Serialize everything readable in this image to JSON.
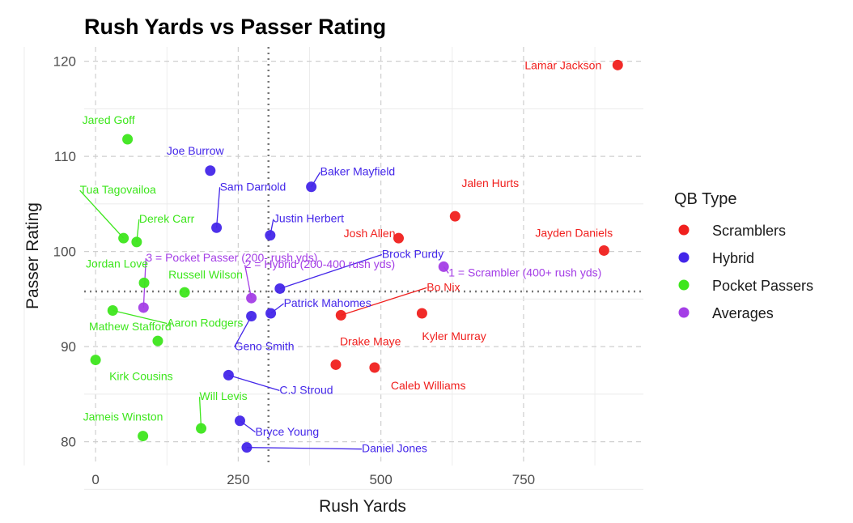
{
  "chart_data": {
    "type": "scatter",
    "title": "Rush Yards vs Passer Rating",
    "xlabel": "Rush Yards",
    "ylabel": "Passer Rating",
    "xlim": [
      -20,
      960
    ],
    "ylim": [
      77.5,
      121.5
    ],
    "x_ticks": [
      0,
      250,
      500,
      750
    ],
    "y_ticks": [
      80,
      90,
      100,
      110,
      120
    ],
    "grid": true,
    "reference_lines": {
      "vertical_x": 303,
      "horizontal_y": 95.8
    },
    "legend": {
      "title": "QB Type",
      "position": "right"
    },
    "series": [
      {
        "name": "Scramblers",
        "color": "#f0201e",
        "points": [
          {
            "label": "Lamar Jackson",
            "x": 915,
            "y": 119.6
          },
          {
            "label": "Jalen Hurts",
            "x": 630,
            "y": 103.7
          },
          {
            "label": "Josh Allen",
            "x": 531,
            "y": 101.4
          },
          {
            "label": "Jayden Daniels",
            "x": 891,
            "y": 100.1
          },
          {
            "label": "Bo Nix",
            "x": 430,
            "y": 93.3
          },
          {
            "label": "Kyler Murray",
            "x": 572,
            "y": 93.5
          },
          {
            "label": "Drake Maye",
            "x": 421,
            "y": 88.1
          },
          {
            "label": "Caleb Williams",
            "x": 489,
            "y": 87.8
          }
        ]
      },
      {
        "name": "Hybrid",
        "color": "#4326e9",
        "points": [
          {
            "label": "Joe Burrow",
            "x": 201,
            "y": 108.5
          },
          {
            "label": "Baker Mayfield",
            "x": 378,
            "y": 106.8
          },
          {
            "label": "Sam Darnold",
            "x": 212,
            "y": 102.5
          },
          {
            "label": "Justin Herbert",
            "x": 306,
            "y": 101.7
          },
          {
            "label": "Brock Purdy",
            "x": 323,
            "y": 96.1
          },
          {
            "label": "Patrick Mahomes",
            "x": 307,
            "y": 93.5
          },
          {
            "label": "Geno Smith",
            "x": 273,
            "y": 93.2
          },
          {
            "label": "C.J Stroud",
            "x": 233,
            "y": 87.0
          },
          {
            "label": "Bryce Young",
            "x": 253,
            "y": 82.2
          },
          {
            "label": "Daniel Jones",
            "x": 265,
            "y": 79.4
          }
        ]
      },
      {
        "name": "Pocket Passers",
        "color": "#3de61c",
        "points": [
          {
            "label": "Jared Goff",
            "x": 56,
            "y": 111.8
          },
          {
            "label": "Tua Tagovailoa",
            "x": 49,
            "y": 101.4
          },
          {
            "label": "Derek Carr",
            "x": 72,
            "y": 101.0
          },
          {
            "label": "Jordan Love",
            "x": 85,
            "y": 96.7
          },
          {
            "label": "Russell Wilson",
            "x": 156,
            "y": 95.7
          },
          {
            "label": "Aaron Rodgers",
            "x": 30,
            "y": 93.8
          },
          {
            "label": "Mathew Stafford",
            "x": 109,
            "y": 90.6
          },
          {
            "label": "Kirk Cousins",
            "x": 0,
            "y": 88.6
          },
          {
            "label": "Will Levis",
            "x": 185,
            "y": 81.4
          },
          {
            "label": "Jameis Winston",
            "x": 83,
            "y": 80.6
          }
        ]
      },
      {
        "name": "Averages",
        "color": "#a43ee6",
        "points": [
          {
            "label": "3 = Pocket Passer (200- rush yds)",
            "x": 84,
            "y": 94.1
          },
          {
            "label": "2 = Hybrid (200-400 rush yds)",
            "x": 273,
            "y": 95.1
          },
          {
            "label": "1 = Scrambler (400+ rush yds)",
            "x": 610,
            "y": 98.4
          }
        ]
      }
    ]
  }
}
